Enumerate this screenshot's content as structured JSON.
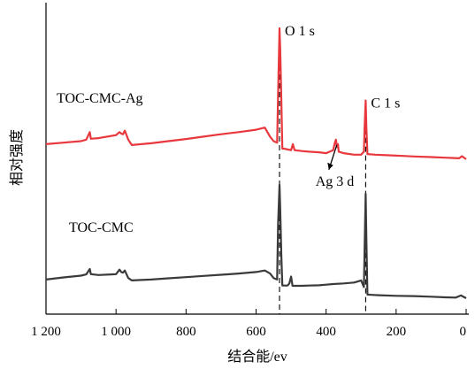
{
  "chart_data": {
    "type": "line",
    "title": "",
    "xlabel": "结合能/ev",
    "ylabel": "相对强度",
    "xlim": [
      1200,
      0
    ],
    "x_reversed": true,
    "xticks": [
      {
        "value": 1200,
        "label": "1 200"
      },
      {
        "value": 1000,
        "label": "1 000"
      },
      {
        "value": 800,
        "label": "800"
      },
      {
        "value": 600,
        "label": "600"
      },
      {
        "value": 400,
        "label": "400"
      },
      {
        "value": 200,
        "label": "200"
      },
      {
        "value": 0,
        "label": "0"
      }
    ],
    "y_units": "relative",
    "ylim": [
      0,
      100
    ],
    "y_ticks_shown": false,
    "grid": false,
    "series": [
      {
        "name": "TOC-CMC-Ag",
        "color": "#e8383d",
        "points": [
          [
            1200,
            56.5
          ],
          [
            1150,
            57.0
          ],
          [
            1100,
            57.5
          ],
          [
            1085,
            58.0
          ],
          [
            1075,
            60.5
          ],
          [
            1072,
            58.3
          ],
          [
            1050,
            58.5
          ],
          [
            1000,
            59.5
          ],
          [
            990,
            60.5
          ],
          [
            985,
            60.0
          ],
          [
            980,
            59.8
          ],
          [
            975,
            61.0
          ],
          [
            965,
            58.0
          ],
          [
            955,
            56.2
          ],
          [
            900,
            56.8
          ],
          [
            850,
            57.5
          ],
          [
            800,
            58.2
          ],
          [
            750,
            59.0
          ],
          [
            700,
            59.8
          ],
          [
            650,
            60.5
          ],
          [
            600,
            61.3
          ],
          [
            575,
            62.0
          ],
          [
            560,
            59.0
          ],
          [
            550,
            57.5
          ],
          [
            540,
            57.0
          ],
          [
            537,
            73.0
          ],
          [
            533,
            95.0
          ],
          [
            531,
            88.0
          ],
          [
            528,
            72.0
          ],
          [
            525,
            55.0
          ],
          [
            520,
            55.0
          ],
          [
            500,
            54.5
          ],
          [
            495,
            56.5
          ],
          [
            490,
            54.5
          ],
          [
            470,
            54.2
          ],
          [
            450,
            54.0
          ],
          [
            420,
            53.8
          ],
          [
            400,
            53.5
          ],
          [
            380,
            54.5
          ],
          [
            375,
            57.0
          ],
          [
            372,
            58.0
          ],
          [
            369,
            55.5
          ],
          [
            366,
            56.5
          ],
          [
            364,
            54.0
          ],
          [
            350,
            53.5
          ],
          [
            320,
            53.0
          ],
          [
            300,
            53.0
          ],
          [
            292,
            54.0
          ],
          [
            290,
            62.0
          ],
          [
            287,
            71.0
          ],
          [
            285,
            62.0
          ],
          [
            282,
            53.2
          ],
          [
            260,
            53.0
          ],
          [
            220,
            52.8
          ],
          [
            180,
            52.6
          ],
          [
            150,
            52.4
          ],
          [
            100,
            52.2
          ],
          [
            60,
            52.0
          ],
          [
            20,
            51.8
          ],
          [
            12,
            52.5
          ],
          [
            0,
            51.5
          ]
        ]
      },
      {
        "name": "TOC-CMC",
        "color": "#3a3a3a",
        "points": [
          [
            1200,
            11.5
          ],
          [
            1150,
            12.2
          ],
          [
            1100,
            12.8
          ],
          [
            1085,
            13.2
          ],
          [
            1075,
            15.0
          ],
          [
            1072,
            13.3
          ],
          [
            1050,
            13.0
          ],
          [
            1000,
            13.3
          ],
          [
            990,
            14.8
          ],
          [
            985,
            14.0
          ],
          [
            980,
            13.8
          ],
          [
            975,
            14.5
          ],
          [
            965,
            12.0
          ],
          [
            955,
            11.2
          ],
          [
            900,
            11.5
          ],
          [
            850,
            11.9
          ],
          [
            800,
            12.3
          ],
          [
            750,
            12.7
          ],
          [
            700,
            13.1
          ],
          [
            650,
            13.5
          ],
          [
            600,
            14.0
          ],
          [
            575,
            14.5
          ],
          [
            560,
            13.5
          ],
          [
            550,
            12.0
          ],
          [
            540,
            11.5
          ],
          [
            537,
            30.0
          ],
          [
            533,
            43.0
          ],
          [
            531,
            35.0
          ],
          [
            528,
            20.0
          ],
          [
            525,
            9.5
          ],
          [
            510,
            9.5
          ],
          [
            505,
            10.2
          ],
          [
            500,
            12.5
          ],
          [
            496,
            9.4
          ],
          [
            470,
            9.4
          ],
          [
            450,
            9.5
          ],
          [
            420,
            9.6
          ],
          [
            400,
            9.8
          ],
          [
            380,
            10.0
          ],
          [
            350,
            10.2
          ],
          [
            320,
            10.5
          ],
          [
            300,
            11.2
          ],
          [
            292,
            9.0
          ],
          [
            290,
            22.0
          ],
          [
            287,
            40.0
          ],
          [
            285,
            25.0
          ],
          [
            282,
            6.5
          ],
          [
            270,
            6.4
          ],
          [
            250,
            6.3
          ],
          [
            200,
            6.1
          ],
          [
            150,
            6.0
          ],
          [
            100,
            5.8
          ],
          [
            60,
            5.6
          ],
          [
            30,
            5.5
          ],
          [
            15,
            6.2
          ],
          [
            0,
            5.3
          ]
        ]
      }
    ],
    "annotations": [
      {
        "text": "O 1 s",
        "x": 533,
        "y": 95.0,
        "kind": "peak"
      },
      {
        "text": "C 1 s",
        "x": 287,
        "y": 71.0,
        "kind": "peak"
      },
      {
        "text": "Ag 3 d",
        "x": 372,
        "y": 58.0,
        "kind": "arrow"
      }
    ],
    "reference_lines": [
      {
        "x": 533,
        "style": "dashed"
      },
      {
        "x": 287,
        "style": "dashed"
      }
    ]
  }
}
